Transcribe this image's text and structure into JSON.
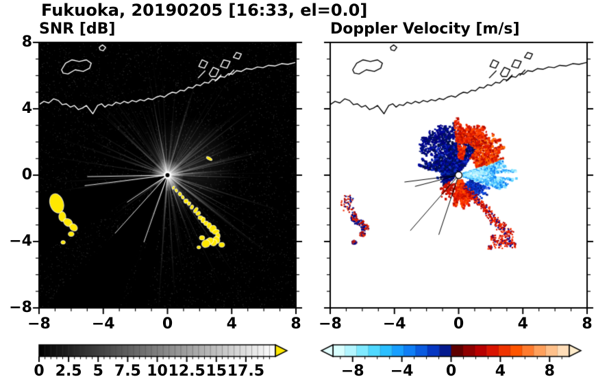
{
  "title": "Fukuoka, 20190205 [16:33, el=0.0]",
  "panels": {
    "snr": {
      "title": "SNR [dB]"
    },
    "doppler": {
      "title": "Doppler Velocity [m/s]"
    }
  },
  "axes": {
    "xlim": [
      -8,
      8
    ],
    "ylim": [
      -8,
      8
    ],
    "minor_step": 1,
    "x_tick_values": [
      -8,
      -4,
      0,
      4,
      8
    ],
    "x_tick_labels": [
      "−8",
      "−4",
      "0",
      "4",
      "8"
    ],
    "y_tick_values": [
      8,
      4,
      0,
      -4,
      -8
    ],
    "y_tick_labels": [
      "8",
      "4",
      "0",
      "−4",
      "−8"
    ]
  },
  "colorbars": {
    "snr": {
      "min": 0,
      "max": 20,
      "minor_step": 0.5,
      "tick_values": [
        0,
        2.5,
        5,
        7.5,
        10,
        12.5,
        15,
        17.5
      ],
      "tick_labels": [
        "0",
        "2.5",
        "5",
        "7.5",
        "10",
        "12.5",
        "15",
        "17.5"
      ],
      "gradient_start": "#000000",
      "gradient_end": "#ffffff",
      "over_arrow_color": "#ffe800"
    },
    "doppler": {
      "min": -9.6,
      "max": 9.6,
      "minor_step": 1,
      "tick_values": [
        -8,
        -4,
        0,
        4,
        8
      ],
      "tick_labels": [
        "−8",
        "−4",
        "0",
        "4",
        "8"
      ],
      "band_colors": [
        "#d9ffff",
        "#b3f5ff",
        "#7fe9ff",
        "#4fd8ff",
        "#2bbfff",
        "#189fff",
        "#0f7ef5",
        "#0a5be0",
        "#0637c2",
        "#041a8f",
        "#5e0000",
        "#8f0000",
        "#b80000",
        "#d91300",
        "#ef3300",
        "#ff5500",
        "#ff7b2e",
        "#ffa05c",
        "#ffc08a",
        "#ffddb8"
      ],
      "under_arrow_color": "#e4ffff",
      "over_arrow_color": "#ffeccb"
    }
  },
  "chart_data": {
    "type": "heatmap",
    "description": "Dual-panel Doppler radar PPI display over Fukuoka / Hakata Bay. Left panel: SNR [dB], black background with radial beam streaks and yellow saturated echoes. Right panel: Doppler velocity [m/s], blue (toward) and red (away) echoes around the radar at the origin. Coastline drawn across the upper part of both panels.",
    "radar_origin": [
      0,
      0
    ],
    "coastline": {
      "main": [
        [
          -8,
          4.25
        ],
        [
          -7.7,
          4.45
        ],
        [
          -7.4,
          4.35
        ],
        [
          -7.1,
          4.6
        ],
        [
          -6.8,
          4.5
        ],
        [
          -6.55,
          4.25
        ],
        [
          -6.3,
          4.3
        ],
        [
          -6.05,
          4.1
        ],
        [
          -5.8,
          4.2
        ],
        [
          -5.55,
          3.95
        ],
        [
          -5.3,
          4.05
        ],
        [
          -5.05,
          4.2
        ],
        [
          -4.85,
          3.95
        ],
        [
          -4.65,
          3.7
        ],
        [
          -4.5,
          3.95
        ],
        [
          -4.35,
          4.2
        ],
        [
          -4.1,
          4.3
        ],
        [
          -3.9,
          4.1
        ],
        [
          -3.7,
          4.25
        ],
        [
          -3.45,
          4.2
        ],
        [
          -3.2,
          4.4
        ],
        [
          -2.95,
          4.3
        ],
        [
          -2.7,
          4.45
        ],
        [
          -2.45,
          4.35
        ],
        [
          -2.2,
          4.5
        ],
        [
          -1.95,
          4.42
        ],
        [
          -1.7,
          4.55
        ],
        [
          -1.45,
          4.48
        ],
        [
          -1.2,
          4.62
        ],
        [
          -0.95,
          4.55
        ],
        [
          -0.7,
          4.7
        ],
        [
          -0.45,
          4.78
        ],
        [
          -0.2,
          4.7
        ],
        [
          0.05,
          4.88
        ],
        [
          0.3,
          5.0
        ],
        [
          0.55,
          4.95
        ],
        [
          0.8,
          5.12
        ],
        [
          1.05,
          5.08
        ],
        [
          1.3,
          5.3
        ],
        [
          1.55,
          5.25
        ],
        [
          1.8,
          5.45
        ],
        [
          2.05,
          5.4
        ],
        [
          2.3,
          5.6
        ],
        [
          2.55,
          5.55
        ],
        [
          2.8,
          5.78
        ],
        [
          3.05,
          5.72
        ],
        [
          3.3,
          5.95
        ],
        [
          3.55,
          5.9
        ],
        [
          3.8,
          6.12
        ],
        [
          4.05,
          6.08
        ],
        [
          4.3,
          6.3
        ],
        [
          4.6,
          6.25
        ],
        [
          4.9,
          6.42
        ],
        [
          5.25,
          6.38
        ],
        [
          5.6,
          6.52
        ],
        [
          5.95,
          6.48
        ],
        [
          6.3,
          6.62
        ],
        [
          6.7,
          6.58
        ],
        [
          7.1,
          6.72
        ],
        [
          7.5,
          6.68
        ],
        [
          8,
          6.8
        ]
      ],
      "islands": [
        [
          [
            -6.6,
            6.35
          ],
          [
            -6.35,
            6.75
          ],
          [
            -5.95,
            6.95
          ],
          [
            -5.5,
            6.85
          ],
          [
            -5.05,
            6.95
          ],
          [
            -4.75,
            6.75
          ],
          [
            -4.85,
            6.45
          ],
          [
            -5.25,
            6.25
          ],
          [
            -5.75,
            6.35
          ],
          [
            -6.2,
            6.1
          ],
          [
            -6.5,
            6.15
          ]
        ],
        [
          [
            -4.25,
            7.7
          ],
          [
            -4.05,
            7.85
          ],
          [
            -3.85,
            7.7
          ],
          [
            -4.0,
            7.5
          ],
          [
            -4.2,
            7.55
          ]
        ]
      ],
      "harbor": [
        [
          [
            1.95,
            6.55
          ],
          [
            2.15,
            6.95
          ],
          [
            2.5,
            6.8
          ],
          [
            2.3,
            6.45
          ]
        ],
        [
          [
            2.6,
            6.1
          ],
          [
            2.85,
            6.5
          ],
          [
            3.2,
            6.35
          ],
          [
            3.0,
            5.95
          ],
          [
            2.7,
            5.95
          ]
        ],
        [
          [
            3.3,
            6.55
          ],
          [
            3.5,
            6.95
          ],
          [
            3.9,
            6.85
          ],
          [
            3.7,
            6.45
          ]
        ],
        [
          [
            4.1,
            7.1
          ],
          [
            4.3,
            7.4
          ],
          [
            4.6,
            7.3
          ],
          [
            4.45,
            7.0
          ]
        ]
      ],
      "piers": [
        [
          [
            1.9,
            5.85
          ],
          [
            2.35,
            6.3
          ]
        ],
        [
          [
            2.95,
            5.65
          ],
          [
            3.35,
            6.05
          ]
        ],
        [
          [
            3.8,
            6.0
          ],
          [
            4.15,
            6.35
          ]
        ]
      ]
    },
    "snr": {
      "background": "#000000",
      "seed": 7,
      "ray_count": 170,
      "bright_ray_count": 12,
      "noise_points": 4200,
      "blocked_sectors": [
        [
          189,
          212
        ],
        [
          228,
          249
        ],
        [
          253,
          261
        ]
      ],
      "boundary_rays": [
        {
          "angle": 181,
          "len": 5.0
        },
        {
          "angle": 187,
          "len": 5.2
        },
        {
          "angle": 213,
          "len": 3.0
        },
        {
          "angle": 227,
          "len": 4.8
        },
        {
          "angle": 250,
          "len": 4.3
        }
      ],
      "strong_echo_color": "#ffe800",
      "blobs": [
        {
          "cx": -6.9,
          "cy": -1.7,
          "rx": 0.42,
          "ry": 0.6,
          "rot": 18
        },
        {
          "cx": -6.55,
          "cy": -2.5,
          "rx": 0.22,
          "ry": 0.3,
          "rot": 0
        },
        {
          "cx": -6.2,
          "cy": -2.85,
          "rx": 0.3,
          "ry": 0.22,
          "rot": -35
        },
        {
          "cx": -5.85,
          "cy": -3.15,
          "rx": 0.26,
          "ry": 0.2,
          "rot": -35
        },
        {
          "cx": -6.0,
          "cy": -3.55,
          "rx": 0.18,
          "ry": 0.14,
          "rot": 0
        },
        {
          "cx": -6.5,
          "cy": -4.05,
          "rx": 0.14,
          "ry": 0.11,
          "rot": 0
        }
      ],
      "chain": [
        [
          0.35,
          -0.75
        ],
        [
          0.55,
          -0.95
        ],
        [
          0.78,
          -1.12
        ],
        [
          0.98,
          -1.32
        ],
        [
          1.15,
          -1.55
        ],
        [
          1.35,
          -1.74
        ],
        [
          1.55,
          -1.92
        ],
        [
          1.74,
          -2.12
        ],
        [
          1.9,
          -2.33
        ],
        [
          2.05,
          -2.55
        ],
        [
          2.22,
          -2.72
        ],
        [
          2.42,
          -2.9
        ],
        [
          2.62,
          -3.05
        ],
        [
          2.82,
          -3.22
        ],
        [
          3.0,
          -3.42
        ],
        [
          3.12,
          -3.65
        ],
        [
          3.05,
          -3.9
        ],
        [
          2.85,
          -4.05
        ],
        [
          2.6,
          -3.95
        ],
        [
          2.42,
          -4.1
        ]
      ],
      "chain_extra": [
        {
          "cx": 2.15,
          "cy": -3.78,
          "r": 0.17
        },
        {
          "cx": 3.38,
          "cy": -4.2,
          "r": 0.18
        },
        {
          "cx": 1.95,
          "cy": -4.35,
          "r": 0.12
        }
      ],
      "spot": {
        "cx": 2.6,
        "cy": 1.0,
        "rx": 0.2,
        "ry": 0.08,
        "rot": -30
      }
    },
    "doppler": {
      "background": "#ffffff",
      "seed": 11,
      "sectors": [
        {
          "a0": 55,
          "a1": 170,
          "r0": 0.25,
          "r1": 2.7,
          "n": 1500,
          "colors": [
            "#000080",
            "#000a9e",
            "#02125f",
            "#1430c8",
            "#000d47"
          ]
        },
        {
          "a0": 95,
          "a1": 150,
          "r0": 2.2,
          "r1": 3.3,
          "n": 320,
          "colors": [
            "#000080",
            "#000a9e",
            "#02125f"
          ]
        },
        {
          "a0": 55,
          "a1": 95,
          "r0": 1.9,
          "r1": 3.5,
          "n": 520,
          "colors": [
            "#d81400",
            "#ef2a00",
            "#b20d00",
            "#ff4400"
          ]
        },
        {
          "a0": 15,
          "a1": 55,
          "r0": 1.2,
          "r1": 3.4,
          "n": 680,
          "colors": [
            "#d81400",
            "#ef2a00",
            "#b20d00",
            "#ff4400",
            "#ff6a00"
          ]
        },
        {
          "a0": -18,
          "a1": 18,
          "r0": 0.3,
          "r1": 3.7,
          "n": 1050,
          "colors": [
            "#8fe8ff",
            "#55ccff",
            "#2fa8ff",
            "#bdf4ff",
            "#1583f0"
          ]
        },
        {
          "a0": -8,
          "a1": 10,
          "r0": 0.4,
          "r1": 1.8,
          "n": 240,
          "colors": [
            "#d8f8ff",
            "#aef0ff",
            "#7fe0ff"
          ]
        },
        {
          "a0": -100,
          "a1": -55,
          "r0": 0.3,
          "r1": 2.1,
          "n": 560,
          "colors": [
            "#e01500",
            "#ff3300",
            "#c00e00",
            "#ff5500"
          ]
        },
        {
          "a0": -55,
          "a1": -22,
          "r0": 0.7,
          "r1": 2.35,
          "n": 260,
          "colors": [
            "#0a2bb4",
            "#0646d6",
            "#001c86",
            "#1240e0"
          ]
        },
        {
          "a0": 165,
          "a1": 215,
          "r0": 0.3,
          "r1": 1.45,
          "n": 200,
          "colors": [
            "#000080",
            "#0a2bb4",
            "#02125f"
          ]
        },
        {
          "a0": 215,
          "a1": 258,
          "r0": 0.6,
          "r1": 1.9,
          "n": 90,
          "colors": [
            "#d81400",
            "#b20d00"
          ]
        },
        {
          "a0": 75,
          "a1": 92,
          "r0": 1.0,
          "r1": 2.1,
          "n": 140,
          "colors": [
            "#d81400",
            "#ff4400"
          ]
        }
      ],
      "black_rays": [
        {
          "angle": 187,
          "len": 3.4
        },
        {
          "angle": 194,
          "len": 2.8
        },
        {
          "angle": 228,
          "len": 4.5
        },
        {
          "angle": 251,
          "len": 3.8
        }
      ],
      "chain_colors": [
        "#d81400",
        "#b00000",
        "#ff3300",
        "#000a9e"
      ],
      "ll_colors": [
        "#c41000",
        "#001c9e",
        "#ef2a00",
        "#000080"
      ]
    }
  }
}
